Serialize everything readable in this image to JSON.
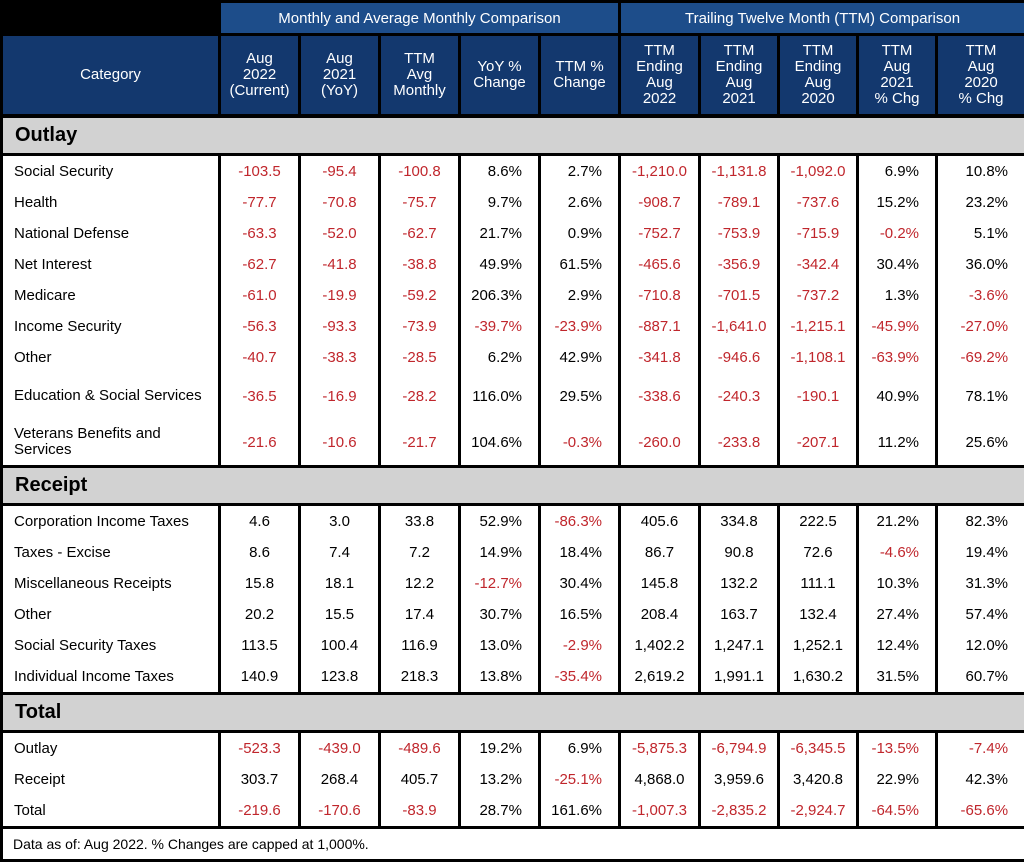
{
  "header": {
    "group_monthly": "Monthly and Average Monthly Comparison",
    "group_ttm": "Trailing Twelve Month (TTM) Comparison",
    "columns": [
      [
        "Category"
      ],
      [
        "Aug",
        "2022",
        "(Current)"
      ],
      [
        "Aug",
        "2021",
        "(YoY)"
      ],
      [
        "TTM",
        "Avg",
        "Monthly"
      ],
      [
        "YoY %",
        "Change"
      ],
      [
        "TTM %",
        "Change"
      ],
      [
        "TTM",
        "Ending",
        "Aug",
        "2022"
      ],
      [
        "TTM",
        "Ending",
        "Aug",
        "2021"
      ],
      [
        "TTM",
        "Ending",
        "Aug",
        "2020"
      ],
      [
        "TTM",
        "Aug",
        "2021",
        "% Chg"
      ],
      [
        "TTM",
        "Aug",
        "2020",
        "% Chg"
      ]
    ]
  },
  "chart_data": {
    "type": "table",
    "sections": [
      {
        "name": "Outlay",
        "rows": [
          {
            "category": "Social Security",
            "values": [
              "-103.5",
              "-95.4",
              "-100.8",
              "8.6%",
              "2.7%",
              "-1,210.0",
              "-1,131.8",
              "-1,092.0",
              "6.9%",
              "10.8%"
            ]
          },
          {
            "category": "Health",
            "values": [
              "-77.7",
              "-70.8",
              "-75.7",
              "9.7%",
              "2.6%",
              "-908.7",
              "-789.1",
              "-737.6",
              "15.2%",
              "23.2%"
            ]
          },
          {
            "category": "National Defense",
            "values": [
              "-63.3",
              "-52.0",
              "-62.7",
              "21.7%",
              "0.9%",
              "-752.7",
              "-753.9",
              "-715.9",
              "-0.2%",
              "5.1%"
            ]
          },
          {
            "category": "Net Interest",
            "values": [
              "-62.7",
              "-41.8",
              "-38.8",
              "49.9%",
              "61.5%",
              "-465.6",
              "-356.9",
              "-342.4",
              "30.4%",
              "36.0%"
            ]
          },
          {
            "category": "Medicare",
            "values": [
              "-61.0",
              "-19.9",
              "-59.2",
              "206.3%",
              "2.9%",
              "-710.8",
              "-701.5",
              "-737.2",
              "1.3%",
              "-3.6%"
            ]
          },
          {
            "category": "Income Security",
            "values": [
              "-56.3",
              "-93.3",
              "-73.9",
              "-39.7%",
              "-23.9%",
              "-887.1",
              "-1,641.0",
              "-1,215.1",
              "-45.9%",
              "-27.0%"
            ]
          },
          {
            "category": "Other",
            "values": [
              "-40.7",
              "-38.3",
              "-28.5",
              "6.2%",
              "42.9%",
              "-341.8",
              "-946.6",
              "-1,108.1",
              "-63.9%",
              "-69.2%"
            ]
          },
          {
            "category": "Education & Social Services",
            "values": [
              "-36.5",
              "-16.9",
              "-28.2",
              "116.0%",
              "29.5%",
              "-338.6",
              "-240.3",
              "-190.1",
              "40.9%",
              "78.1%"
            ]
          },
          {
            "category": "Veterans Benefits and Services",
            "values": [
              "-21.6",
              "-10.6",
              "-21.7",
              "104.6%",
              "-0.3%",
              "-260.0",
              "-233.8",
              "-207.1",
              "11.2%",
              "25.6%"
            ]
          }
        ]
      },
      {
        "name": "Receipt",
        "rows": [
          {
            "category": "Corporation Income Taxes",
            "values": [
              "4.6",
              "3.0",
              "33.8",
              "52.9%",
              "-86.3%",
              "405.6",
              "334.8",
              "222.5",
              "21.2%",
              "82.3%"
            ]
          },
          {
            "category": "Taxes - Excise",
            "values": [
              "8.6",
              "7.4",
              "7.2",
              "14.9%",
              "18.4%",
              "86.7",
              "90.8",
              "72.6",
              "-4.6%",
              "19.4%"
            ]
          },
          {
            "category": "Miscellaneous Receipts",
            "values": [
              "15.8",
              "18.1",
              "12.2",
              "-12.7%",
              "30.4%",
              "145.8",
              "132.2",
              "111.1",
              "10.3%",
              "31.3%"
            ]
          },
          {
            "category": "Other",
            "values": [
              "20.2",
              "15.5",
              "17.4",
              "30.7%",
              "16.5%",
              "208.4",
              "163.7",
              "132.4",
              "27.4%",
              "57.4%"
            ]
          },
          {
            "category": "Social Security Taxes",
            "values": [
              "113.5",
              "100.4",
              "116.9",
              "13.0%",
              "-2.9%",
              "1,402.2",
              "1,247.1",
              "1,252.1",
              "12.4%",
              "12.0%"
            ]
          },
          {
            "category": "Individual Income Taxes",
            "values": [
              "140.9",
              "123.8",
              "218.3",
              "13.8%",
              "-35.4%",
              "2,619.2",
              "1,991.1",
              "1,630.2",
              "31.5%",
              "60.7%"
            ]
          }
        ]
      },
      {
        "name": "Total",
        "rows": [
          {
            "category": "Outlay",
            "values": [
              "-523.3",
              "-439.0",
              "-489.6",
              "19.2%",
              "6.9%",
              "-5,875.3",
              "-6,794.9",
              "-6,345.5",
              "-13.5%",
              "-7.4%"
            ]
          },
          {
            "category": "Receipt",
            "values": [
              "303.7",
              "268.4",
              "405.7",
              "13.2%",
              "-25.1%",
              "4,868.0",
              "3,959.6",
              "3,420.8",
              "22.9%",
              "42.3%"
            ]
          },
          {
            "category": "Total",
            "values": [
              "-219.6",
              "-170.6",
              "-83.9",
              "28.7%",
              "161.6%",
              "-1,007.3",
              "-2,835.2",
              "-2,924.7",
              "-64.5%",
              "-65.6%"
            ]
          }
        ]
      }
    ]
  },
  "colors": {
    "header_group": "#1d4d8a",
    "header": "#13386e",
    "section": "#d2d2d2",
    "negative": "#c0262c"
  },
  "footnote": "Data as of: Aug 2022. % Changes are capped at 1,000%."
}
